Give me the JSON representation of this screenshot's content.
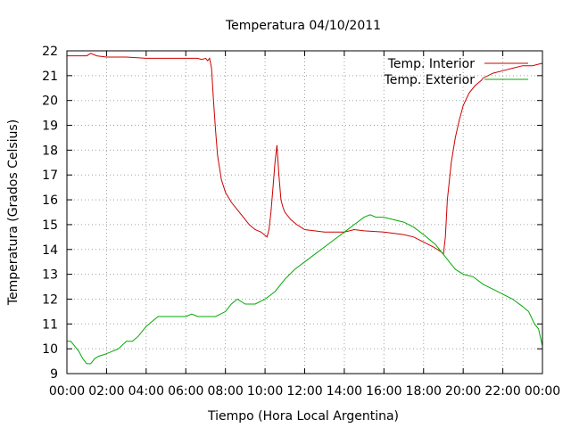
{
  "chart_data": {
    "type": "line",
    "title": "Temperatura 04/10/2011",
    "xlabel": "Tiempo (Hora Local Argentina)",
    "ylabel": "Temperatura (Grados Celsius)",
    "xlim": [
      0,
      24
    ],
    "ylim": [
      9,
      22
    ],
    "x_tick_labels": [
      "00:00",
      "02:00",
      "04:00",
      "06:00",
      "08:00",
      "10:00",
      "12:00",
      "14:00",
      "16:00",
      "18:00",
      "20:00",
      "22:00",
      "00:00"
    ],
    "y_tick_labels": [
      "9",
      "10",
      "11",
      "12",
      "13",
      "14",
      "15",
      "16",
      "17",
      "18",
      "19",
      "20",
      "21",
      "22"
    ],
    "grid": true,
    "legend_position": "top-right",
    "series": [
      {
        "name": "Temp. Interior",
        "color": "#cc0000",
        "x": [
          0,
          0.5,
          1.0,
          1.2,
          1.5,
          2.0,
          3.0,
          4.0,
          5.0,
          6.0,
          6.6,
          6.8,
          7.0,
          7.1,
          7.2,
          7.3,
          7.4,
          7.5,
          7.6,
          7.8,
          8.0,
          8.3,
          8.6,
          8.9,
          9.2,
          9.5,
          9.8,
          10.1,
          10.2,
          10.3,
          10.4,
          10.5,
          10.6,
          10.7,
          10.8,
          10.9,
          11.0,
          11.3,
          11.6,
          12.0,
          12.5,
          13.0,
          14.0,
          14.5,
          15.0,
          16.0,
          17.0,
          17.5,
          18.0,
          18.5,
          18.9,
          19.0,
          19.1,
          19.2,
          19.4,
          19.6,
          19.8,
          20.0,
          20.3,
          20.6,
          20.9,
          21.0,
          21.5,
          22.0,
          22.5,
          23.0,
          23.5,
          24.0
        ],
        "y": [
          21.8,
          21.8,
          21.8,
          21.9,
          21.8,
          21.75,
          21.75,
          21.7,
          21.7,
          21.7,
          21.7,
          21.65,
          21.7,
          21.6,
          21.7,
          21.3,
          20.0,
          18.8,
          17.8,
          16.8,
          16.3,
          15.9,
          15.6,
          15.3,
          15.0,
          14.8,
          14.7,
          14.5,
          14.8,
          15.5,
          16.5,
          17.5,
          18.2,
          17.0,
          16.0,
          15.7,
          15.5,
          15.2,
          15.0,
          14.8,
          14.75,
          14.7,
          14.7,
          14.8,
          14.75,
          14.7,
          14.6,
          14.5,
          14.3,
          14.1,
          13.9,
          13.8,
          14.5,
          16.0,
          17.5,
          18.5,
          19.2,
          19.8,
          20.3,
          20.6,
          20.8,
          20.9,
          21.1,
          21.2,
          21.3,
          21.4,
          21.4,
          21.5
        ]
      },
      {
        "name": "Temp. Exterior",
        "color": "#00aa00",
        "x": [
          0,
          0.2,
          0.4,
          0.6,
          0.8,
          1.0,
          1.2,
          1.4,
          1.6,
          1.8,
          2.0,
          2.3,
          2.6,
          3.0,
          3.3,
          3.6,
          4.0,
          4.3,
          4.6,
          5.0,
          5.5,
          6.0,
          6.3,
          6.6,
          7.0,
          7.5,
          8.0,
          8.3,
          8.6,
          9.0,
          9.5,
          10.0,
          10.5,
          11.0,
          11.5,
          12.0,
          12.5,
          13.0,
          13.5,
          14.0,
          14.5,
          15.0,
          15.3,
          15.6,
          16.0,
          16.5,
          17.0,
          17.5,
          18.0,
          18.3,
          18.6,
          19.0,
          19.3,
          19.6,
          20.0,
          20.5,
          21.0,
          21.5,
          22.0,
          22.5,
          23.0,
          23.3,
          23.6,
          23.8,
          24.0
        ],
        "y": [
          10.3,
          10.3,
          10.1,
          9.9,
          9.6,
          9.4,
          9.4,
          9.6,
          9.7,
          9.75,
          9.8,
          9.9,
          10.0,
          10.3,
          10.3,
          10.5,
          10.9,
          11.1,
          11.3,
          11.3,
          11.3,
          11.3,
          11.4,
          11.3,
          11.3,
          11.3,
          11.5,
          11.8,
          12.0,
          11.8,
          11.8,
          12.0,
          12.3,
          12.8,
          13.2,
          13.5,
          13.8,
          14.1,
          14.4,
          14.7,
          15.0,
          15.3,
          15.4,
          15.3,
          15.3,
          15.2,
          15.1,
          14.9,
          14.6,
          14.4,
          14.2,
          13.8,
          13.5,
          13.2,
          13.0,
          12.9,
          12.6,
          12.4,
          12.2,
          12.0,
          11.7,
          11.5,
          11.0,
          10.8,
          10.1
        ]
      }
    ]
  }
}
